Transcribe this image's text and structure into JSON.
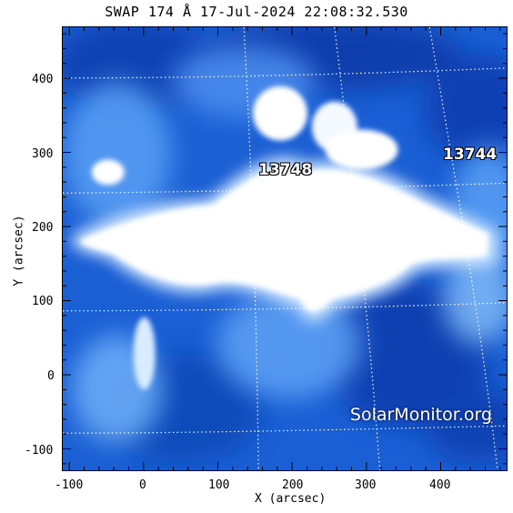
{
  "title": "SWAP 174 Å 17-Jul-2024 22:08:32.530",
  "xlabel": "X (arcsec)",
  "ylabel": "Y (arcsec)",
  "x_ticks": [
    "-100",
    "0",
    "100",
    "200",
    "300",
    "400"
  ],
  "y_ticks": [
    "-100",
    "0",
    "100",
    "200",
    "300",
    "400"
  ],
  "x_range": [
    -110,
    490
  ],
  "y_range": [
    -130,
    470
  ],
  "active_regions": [
    {
      "label": "13748",
      "x": 205,
      "y": 275
    },
    {
      "label": "13744",
      "x": 440,
      "y": 300
    }
  ],
  "watermark": "SolarMonitor.org",
  "colors": {
    "deep": "#0a3fb8",
    "mid": "#2f7bf0",
    "light": "#9fd0ff",
    "bright": "#ffffff"
  }
}
